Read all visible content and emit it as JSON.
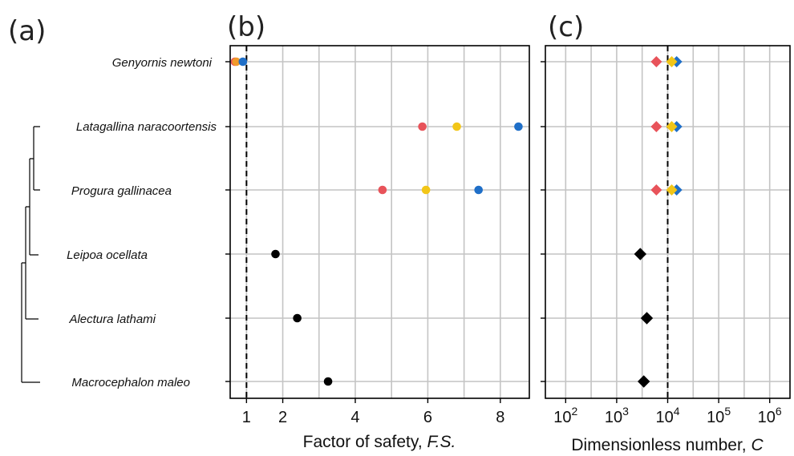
{
  "panel_labels": {
    "a": "(a)",
    "b": "(b)",
    "c": "(c)"
  },
  "species": [
    "Genyornis newtoni",
    "Latagallina naracoortensis",
    "Progura gallinacea",
    "Leipoa ocellata",
    "Alectura lathami",
    "Macrocephalon maleo"
  ],
  "colors": {
    "red": "#e8535a",
    "yellow": "#f2c618",
    "blue": "#1f6fc8",
    "orange": "#f19a2b",
    "black": "#000000",
    "grid": "#c4c4c4"
  },
  "chart_data": [
    {
      "type": "scatter",
      "panel": "b",
      "xlabel_prefix": "Factor of safety, ",
      "xlabel_var": "F.S.",
      "ylabel": "",
      "x_ticks": [
        "1",
        "2",
        "4",
        "6",
        "8"
      ],
      "x_tick_values": [
        1,
        2,
        4,
        6,
        8
      ],
      "xlim": [
        0.55,
        8.8
      ],
      "grid": true,
      "threshold_x": 1,
      "points": [
        {
          "species": "Genyornis newtoni",
          "x": 0.68,
          "color": "red"
        },
        {
          "species": "Genyornis newtoni",
          "x": 0.72,
          "color": "orange"
        },
        {
          "species": "Genyornis newtoni",
          "x": 0.9,
          "color": "blue"
        },
        {
          "species": "Latagallina naracoortensis",
          "x": 5.85,
          "color": "red"
        },
        {
          "species": "Latagallina naracoortensis",
          "x": 6.8,
          "color": "yellow"
        },
        {
          "species": "Latagallina naracoortensis",
          "x": 8.5,
          "color": "blue"
        },
        {
          "species": "Progura gallinacea",
          "x": 4.75,
          "color": "red"
        },
        {
          "species": "Progura gallinacea",
          "x": 5.95,
          "color": "yellow"
        },
        {
          "species": "Progura gallinacea",
          "x": 7.4,
          "color": "blue"
        },
        {
          "species": "Leipoa ocellata",
          "x": 1.8,
          "color": "black"
        },
        {
          "species": "Alectura lathami",
          "x": 2.4,
          "color": "black"
        },
        {
          "species": "Macrocephalon maleo",
          "x": 3.25,
          "color": "black"
        }
      ]
    },
    {
      "type": "scatter",
      "panel": "c",
      "xlabel_prefix": "Dimensionless number, ",
      "xlabel_var": "C",
      "ylabel": "",
      "x_scale": "log",
      "x_ticks": [
        "10",
        "10",
        "10",
        "10",
        "10"
      ],
      "x_tick_exponents": [
        "2",
        "3",
        "4",
        "5",
        "6"
      ],
      "x_tick_values": [
        100,
        1000,
        10000,
        100000,
        1000000
      ],
      "xlim": [
        40,
        2500000
      ],
      "grid": true,
      "threshold_x": 10000,
      "points": [
        {
          "species": "Genyornis newtoni",
          "x": 6000,
          "color": "red"
        },
        {
          "species": "Genyornis newtoni",
          "x": 15000,
          "color": "blue"
        },
        {
          "species": "Genyornis newtoni",
          "x": 12000,
          "color": "yellow"
        },
        {
          "species": "Latagallina naracoortensis",
          "x": 6000,
          "color": "red"
        },
        {
          "species": "Latagallina naracoortensis",
          "x": 15000,
          "color": "blue"
        },
        {
          "species": "Latagallina naracoortensis",
          "x": 12000,
          "color": "yellow"
        },
        {
          "species": "Progura gallinacea",
          "x": 6000,
          "color": "red"
        },
        {
          "species": "Progura gallinacea",
          "x": 15000,
          "color": "blue"
        },
        {
          "species": "Progura gallinacea",
          "x": 12000,
          "color": "yellow"
        },
        {
          "species": "Leipoa ocellata",
          "x": 2900,
          "color": "black"
        },
        {
          "species": "Alectura lathami",
          "x": 3900,
          "color": "black"
        },
        {
          "species": "Macrocephalon maleo",
          "x": 3400,
          "color": "black"
        }
      ]
    }
  ]
}
